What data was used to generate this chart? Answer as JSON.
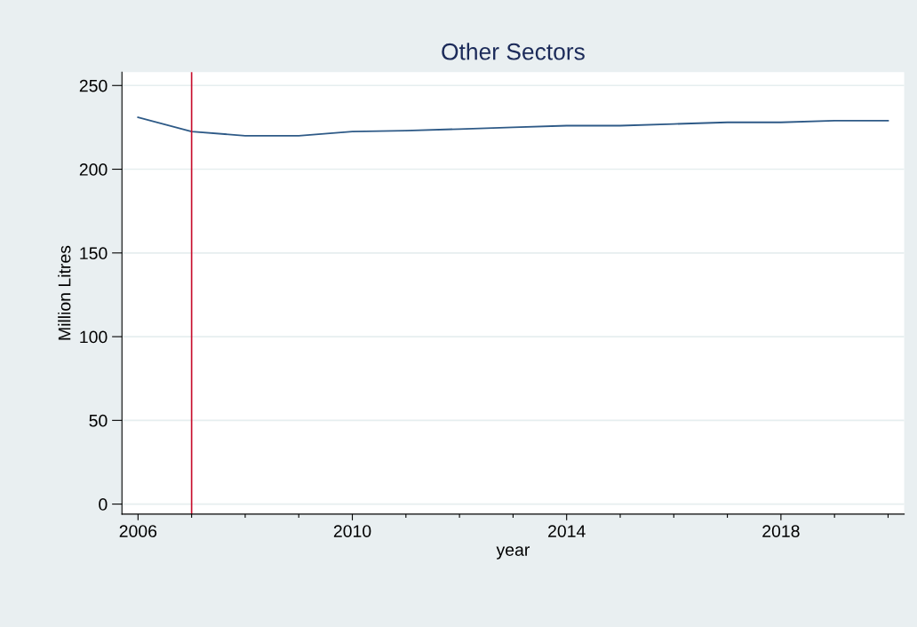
{
  "chart_data": {
    "type": "line",
    "title": "Other Sectors",
    "xlabel": "year",
    "ylabel": "Million Litres",
    "x": [
      2006,
      2007,
      2008,
      2009,
      2010,
      2011,
      2012,
      2013,
      2014,
      2015,
      2016,
      2017,
      2018,
      2019,
      2020
    ],
    "series": [
      {
        "color": "#2e5a87",
        "values": [
          231,
          222.5,
          220,
          220,
          222.5,
          223,
          224,
          225,
          226,
          226,
          227,
          228,
          228,
          229,
          229
        ]
      }
    ],
    "xlim": [
      2005.7,
      2020.3
    ],
    "xticks": [
      2006,
      {
        "value": 2007,
        "label": null
      },
      {
        "value": 2008,
        "label": null
      },
      {
        "value": 2009,
        "label": null
      },
      2010,
      {
        "value": 2011,
        "label": null
      },
      {
        "value": 2012,
        "label": null
      },
      {
        "value": 2013,
        "label": null
      },
      2014,
      {
        "value": 2015,
        "label": null
      },
      {
        "value": 2016,
        "label": null
      },
      {
        "value": 2017,
        "label": null
      },
      2018,
      {
        "value": 2019,
        "label": null
      },
      {
        "value": 2020,
        "label": null
      }
    ],
    "ylim": [
      -6,
      258
    ],
    "yticks": [
      0,
      50,
      100,
      150,
      200,
      250
    ],
    "ref_lines": [
      {
        "axis": "x",
        "value": 2007,
        "color": "#c8102e"
      }
    ],
    "grid": "y"
  }
}
